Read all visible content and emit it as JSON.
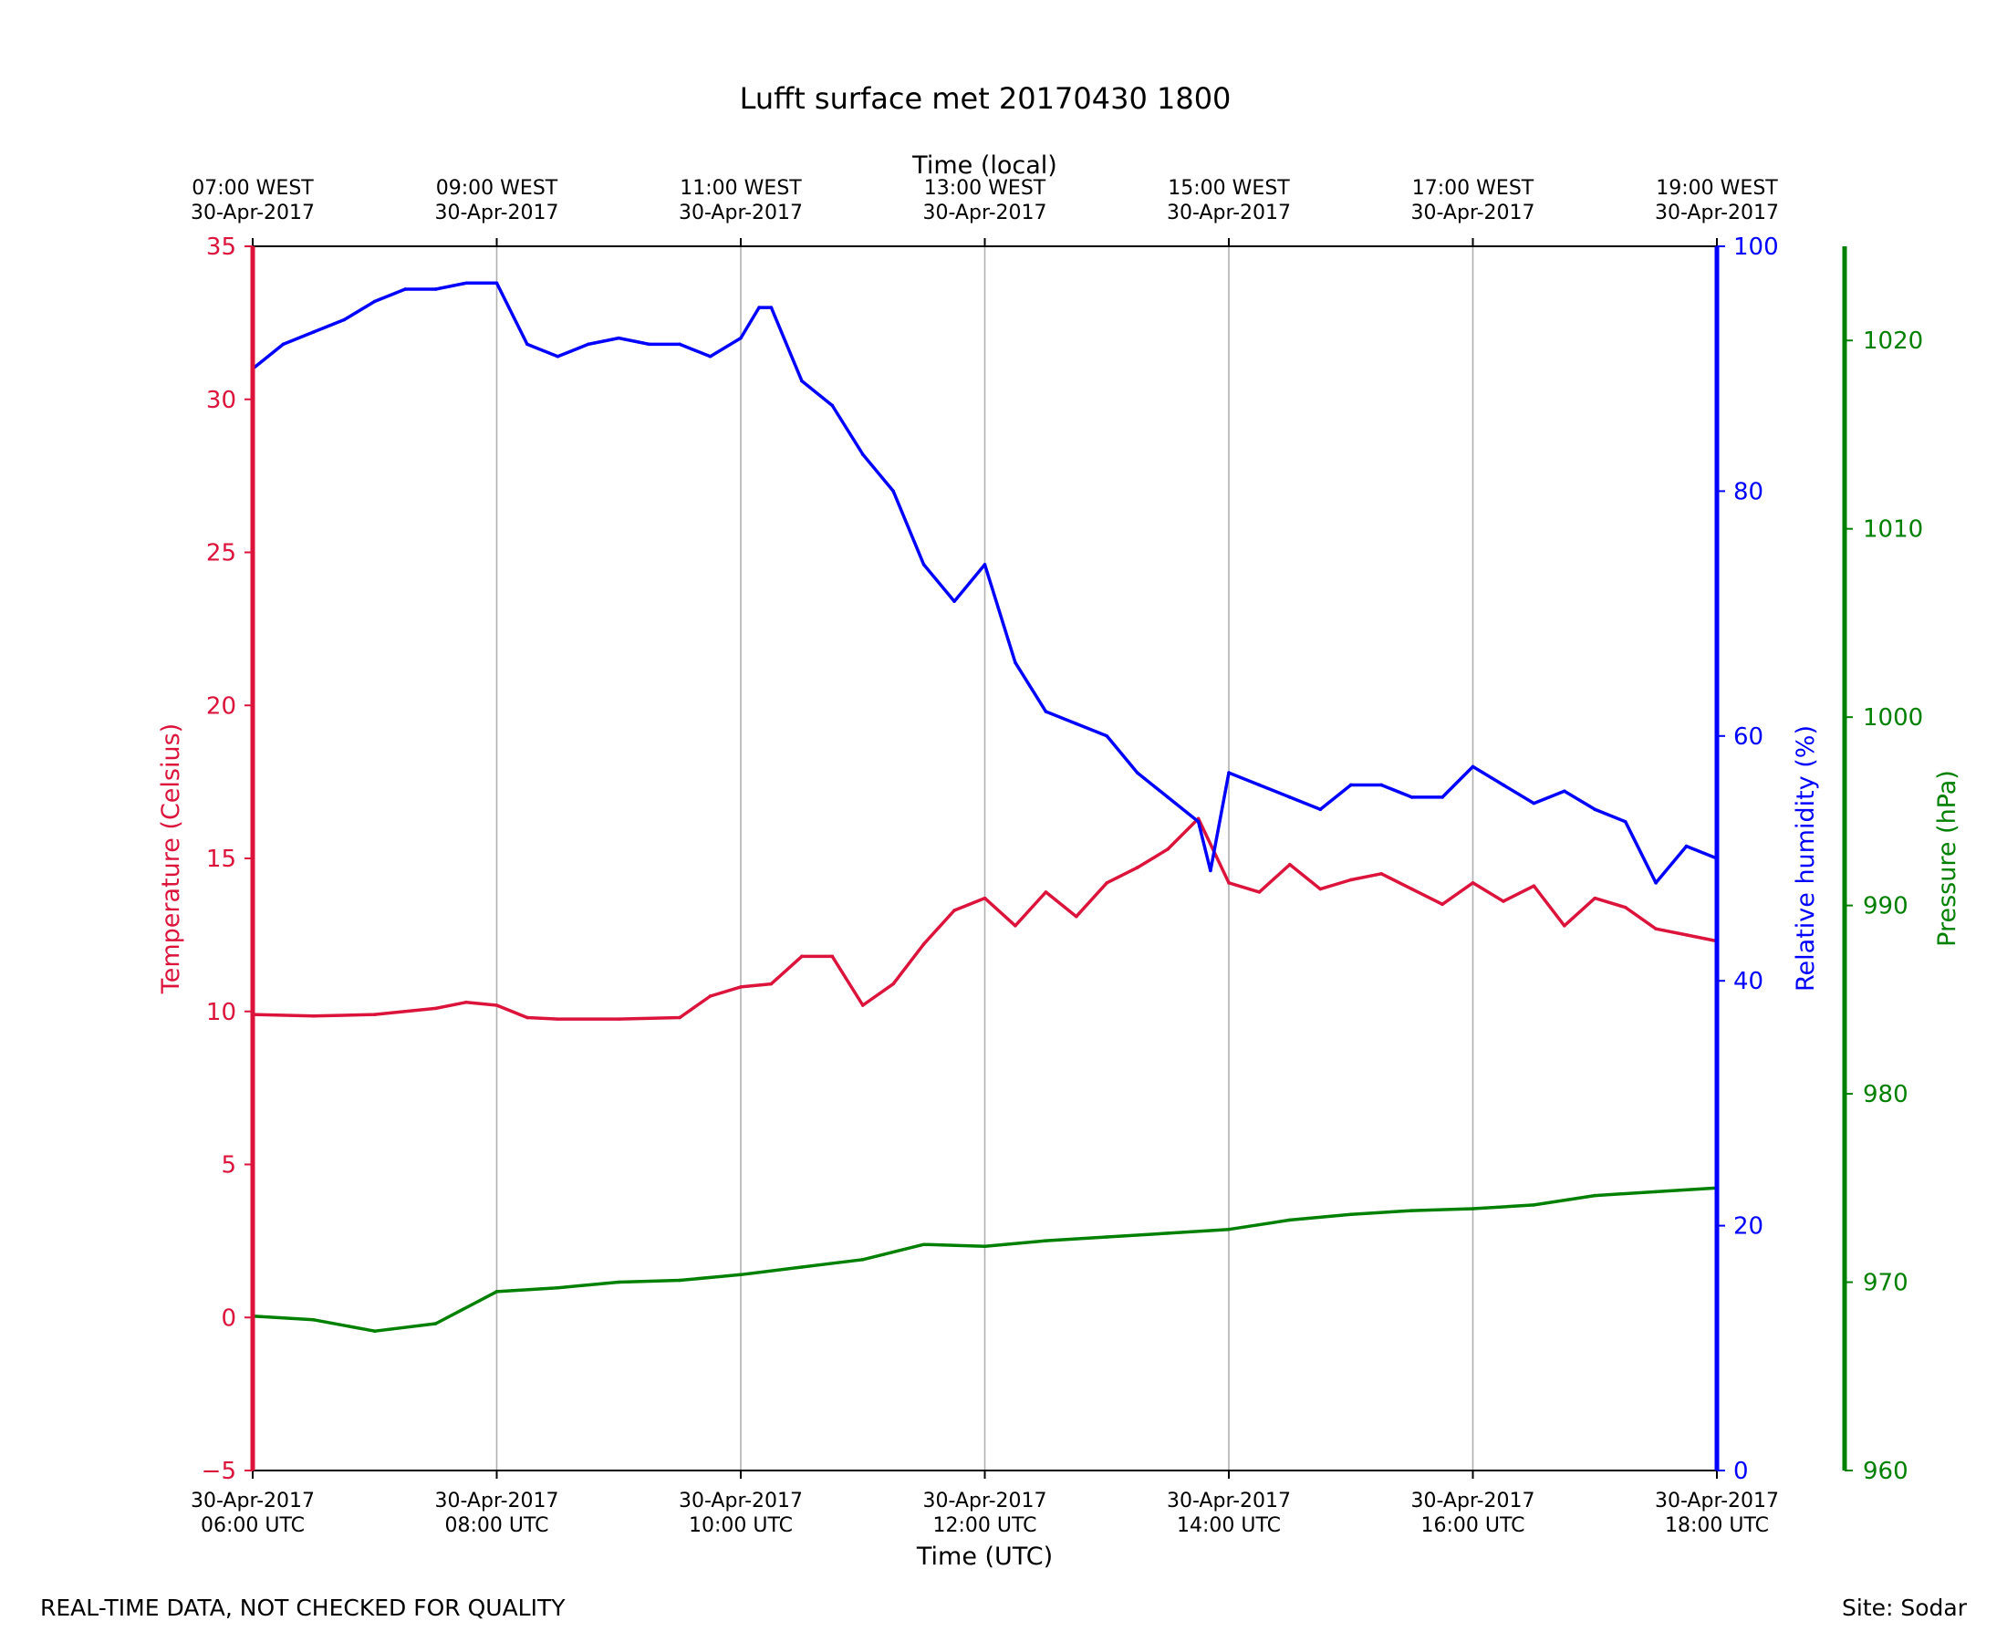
{
  "chart_data": {
    "type": "line",
    "title": "Lufft surface met 20170430 1800",
    "xlabel": "Time (UTC)",
    "x2label": "Time (local)",
    "x_range_utc_hours": [
      6,
      18
    ],
    "x_ticks": [
      {
        "hour": 6,
        "utc_date": "30-Apr-2017",
        "utc_time": "06:00 UTC",
        "local_time": "07:00 WEST",
        "local_date": "30-Apr-2017"
      },
      {
        "hour": 8,
        "utc_date": "30-Apr-2017",
        "utc_time": "08:00 UTC",
        "local_time": "09:00 WEST",
        "local_date": "30-Apr-2017"
      },
      {
        "hour": 10,
        "utc_date": "30-Apr-2017",
        "utc_time": "10:00 UTC",
        "local_time": "11:00 WEST",
        "local_date": "30-Apr-2017"
      },
      {
        "hour": 12,
        "utc_date": "30-Apr-2017",
        "utc_time": "12:00 UTC",
        "local_time": "13:00 WEST",
        "local_date": "30-Apr-2017"
      },
      {
        "hour": 14,
        "utc_date": "30-Apr-2017",
        "utc_time": "14:00 UTC",
        "local_time": "15:00 WEST",
        "local_date": "30-Apr-2017"
      },
      {
        "hour": 16,
        "utc_date": "30-Apr-2017",
        "utc_time": "16:00 UTC",
        "local_time": "17:00 WEST",
        "local_date": "30-Apr-2017"
      },
      {
        "hour": 18,
        "utc_date": "30-Apr-2017",
        "utc_time": "18:00 UTC",
        "local_time": "19:00 WEST",
        "local_date": "30-Apr-2017"
      }
    ],
    "grid": "vertical",
    "axes": [
      {
        "id": "temp",
        "side": "left",
        "label": "Temperature (Celsius)",
        "color": "#dc143c",
        "range": [
          -5,
          35
        ],
        "ticks": [
          -5,
          0,
          5,
          10,
          15,
          20,
          25,
          30,
          35
        ]
      },
      {
        "id": "rh",
        "side": "right",
        "label": "Relative humidity (%)",
        "color": "#0000ff",
        "range": [
          0,
          100
        ],
        "ticks": [
          0,
          20,
          40,
          60,
          80,
          100
        ]
      },
      {
        "id": "pres",
        "side": "right-outer",
        "label": "Pressure (hPa)",
        "color": "#008000",
        "range": [
          960,
          1025
        ],
        "ticks": [
          960,
          970,
          980,
          990,
          1000,
          1010,
          1020
        ]
      }
    ],
    "series": [
      {
        "name": "Temperature",
        "axis": "temp",
        "color": "#dc143c",
        "x": [
          6.0,
          6.5,
          7.0,
          7.5,
          7.75,
          8.0,
          8.25,
          8.5,
          9.0,
          9.5,
          9.75,
          10.0,
          10.25,
          10.5,
          10.75,
          11.0,
          11.25,
          11.5,
          11.75,
          12.0,
          12.25,
          12.5,
          12.75,
          13.0,
          13.25,
          13.5,
          13.75,
          14.0,
          14.25,
          14.5,
          14.75,
          15.0,
          15.25,
          15.5,
          15.75,
          16.0,
          16.25,
          16.5,
          16.75,
          17.0,
          17.25,
          17.5,
          17.75,
          18.0
        ],
        "y": [
          9.9,
          9.85,
          9.9,
          10.1,
          10.3,
          10.2,
          9.8,
          9.75,
          9.75,
          9.8,
          10.5,
          10.8,
          10.9,
          11.8,
          11.8,
          10.2,
          10.9,
          12.2,
          13.3,
          13.7,
          12.8,
          13.9,
          13.1,
          14.2,
          14.7,
          15.3,
          16.3,
          14.2,
          13.9,
          14.8,
          14.0,
          14.3,
          14.5,
          14.0,
          13.5,
          14.2,
          13.6,
          14.1,
          12.8,
          13.7,
          13.4,
          12.7,
          12.5,
          12.3
        ]
      },
      {
        "name": "Relative humidity",
        "axis": "rh",
        "color": "#0000ff",
        "x": [
          6.0,
          6.25,
          6.5,
          6.75,
          7.0,
          7.25,
          7.5,
          7.75,
          8.0,
          8.25,
          8.5,
          8.75,
          9.0,
          9.25,
          9.5,
          9.75,
          10.0,
          10.15,
          10.25,
          10.5,
          10.75,
          11.0,
          11.25,
          11.5,
          11.75,
          12.0,
          12.25,
          12.5,
          12.75,
          13.0,
          13.25,
          13.5,
          13.75,
          13.85,
          14.0,
          14.25,
          14.5,
          14.75,
          15.0,
          15.25,
          15.5,
          15.75,
          16.0,
          16.25,
          16.5,
          16.75,
          17.0,
          17.25,
          17.5,
          17.75,
          18.0
        ],
        "y": [
          90,
          92,
          93,
          94,
          95.5,
          96.5,
          96.5,
          97,
          97,
          92,
          91,
          92,
          92.5,
          92,
          92,
          91,
          92.5,
          95,
          95,
          89,
          87,
          83,
          80,
          74,
          71,
          74,
          66,
          62,
          61,
          60,
          57,
          55,
          53,
          49,
          57,
          56,
          55,
          54,
          56,
          56,
          55,
          55,
          57.5,
          56,
          54.5,
          55.5,
          54,
          53,
          48,
          51,
          50
        ]
      },
      {
        "name": "Pressure",
        "axis": "pres",
        "color": "#008000",
        "x": [
          6.0,
          6.5,
          7.0,
          7.5,
          8.0,
          8.5,
          9.0,
          9.5,
          10.0,
          10.5,
          11.0,
          11.5,
          12.0,
          12.5,
          13.0,
          13.5,
          14.0,
          14.5,
          15.0,
          15.5,
          16.0,
          16.5,
          17.0,
          17.5,
          18.0
        ],
        "y": [
          968.2,
          968.0,
          967.4,
          967.8,
          969.5,
          969.7,
          970.0,
          970.1,
          970.4,
          970.8,
          971.2,
          972.0,
          971.9,
          972.2,
          972.4,
          972.6,
          972.8,
          973.3,
          973.6,
          973.8,
          973.9,
          974.1,
          974.6,
          974.8,
          975.0
        ]
      }
    ]
  },
  "footer": {
    "disclaimer": "REAL-TIME DATA, NOT CHECKED FOR QUALITY",
    "site": "Site: Sodar"
  }
}
